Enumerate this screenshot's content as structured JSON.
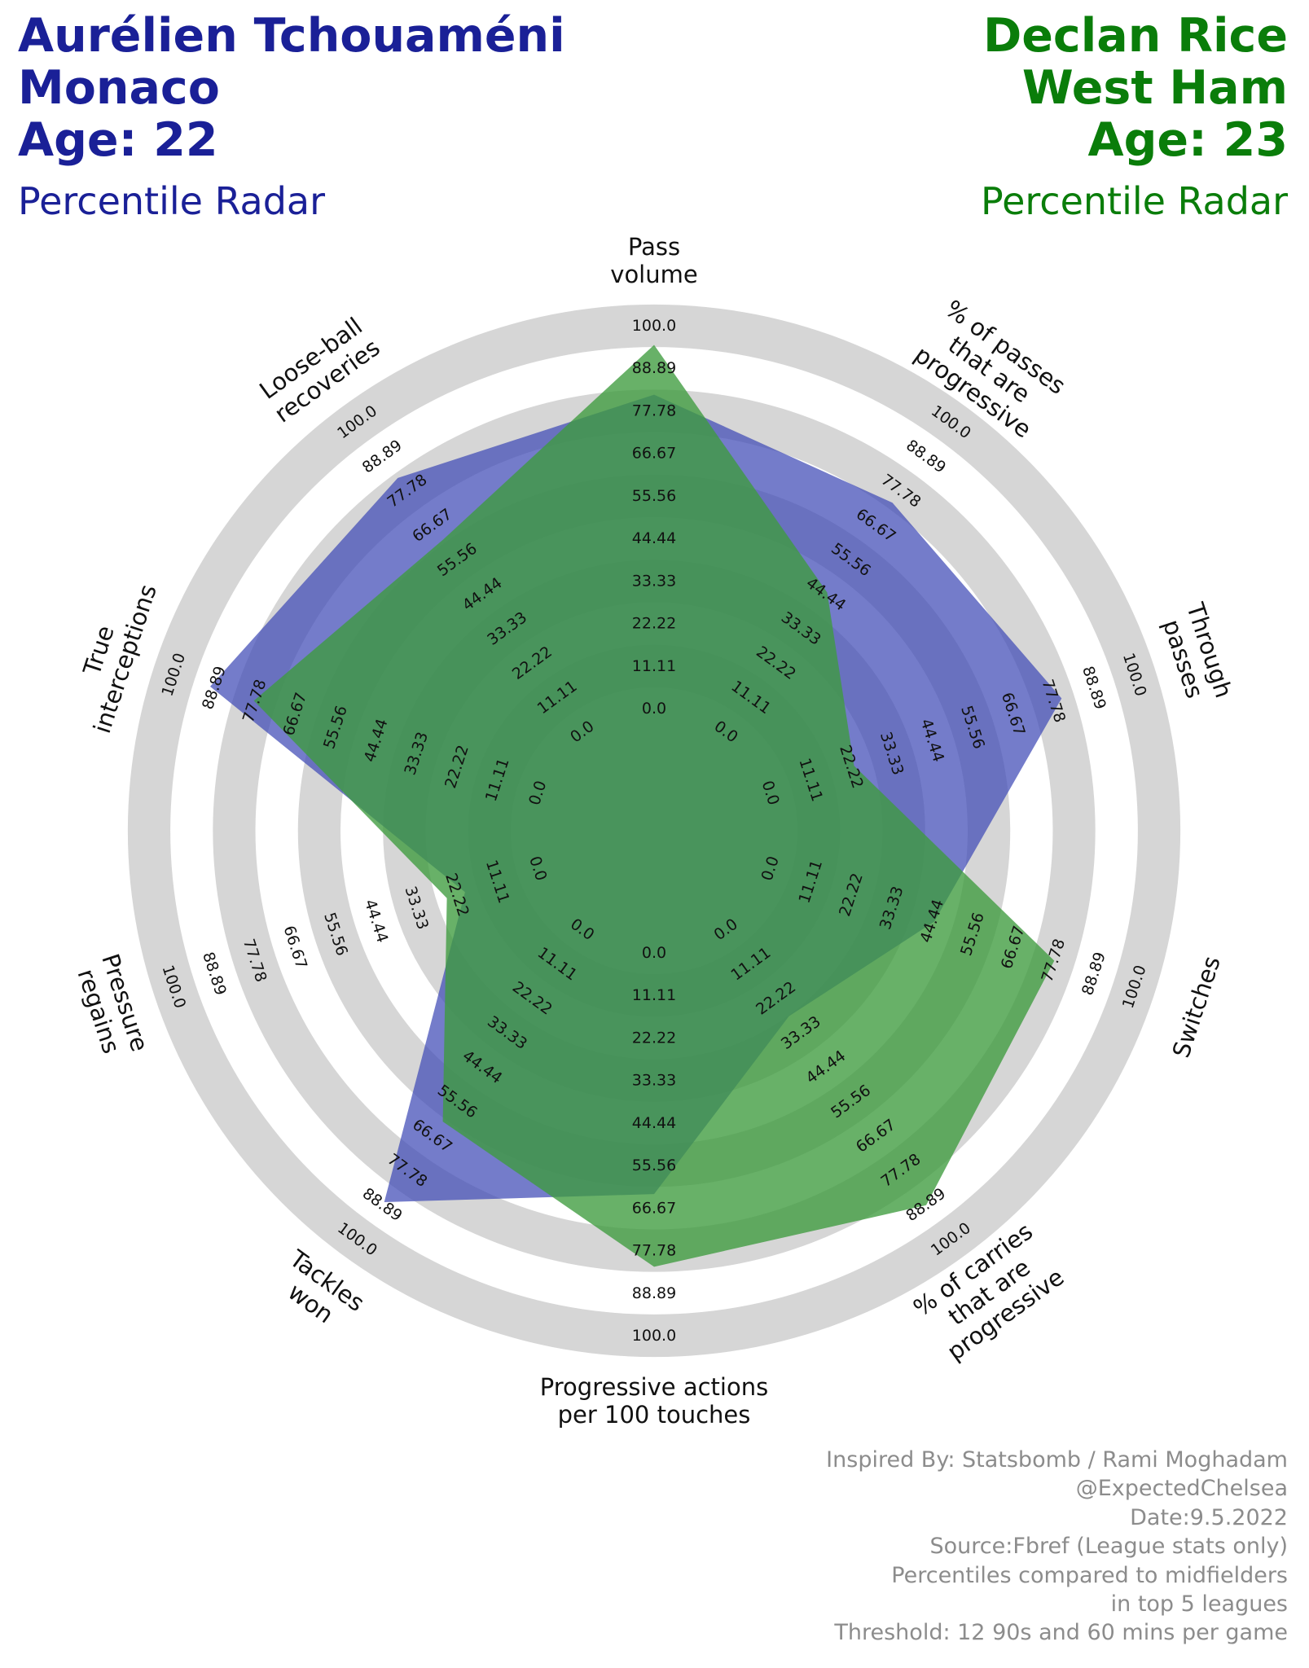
{
  "players": {
    "left": {
      "name": "Aurélien Tchouaméni",
      "team": "Monaco",
      "age": "Age: 22",
      "subtitle": "Percentile Radar",
      "color": "#1a2097"
    },
    "right": {
      "name": "Declan Rice",
      "team": "West Ham",
      "age": "Age: 23",
      "subtitle": "Percentile Radar",
      "color": "#0a7d0a"
    }
  },
  "footer": {
    "lines": [
      "Inspired By: Statsbomb / Rami Moghadam",
      "@ExpectedChelsea",
      "Date:9.5.2022",
      "Source:Fbref (League stats only)",
      "Percentiles compared to midfielders",
      "in top 5 leagues",
      "Threshold: 12 90s and 60 mins per game"
    ]
  },
  "chart_data": {
    "type": "radar",
    "categories": [
      "Pass\nvolume",
      "% of passes\nthat are\nprogressive",
      "Through\npasses",
      "Switches",
      "% of carries\nthat are\nprogressive",
      "Progressive actions\nper 100 touches",
      "Tackles\nwon",
      "Pressure\nregains",
      "True\ninterceptions",
      "Loose-ball\nrecoveries"
    ],
    "ticks": [
      "0.0",
      "11.11",
      "22.22",
      "33.33",
      "44.44",
      "55.56",
      "66.67",
      "77.78",
      "88.89",
      "100.0"
    ],
    "range": [
      0,
      100
    ],
    "series": [
      {
        "name": "Aurélien Tchouaméni",
        "color": "#3f4ab5",
        "opacity": 0.72,
        "values": [
          82,
          74,
          80,
          45,
          28,
          63,
          88,
          20,
          90,
          82
        ]
      },
      {
        "name": "Declan Rice",
        "color": "#3e9b3e",
        "opacity": 0.78,
        "values": [
          95,
          45,
          23,
          78,
          89,
          82,
          62,
          25,
          78,
          62
        ]
      }
    ],
    "grid": "on"
  }
}
